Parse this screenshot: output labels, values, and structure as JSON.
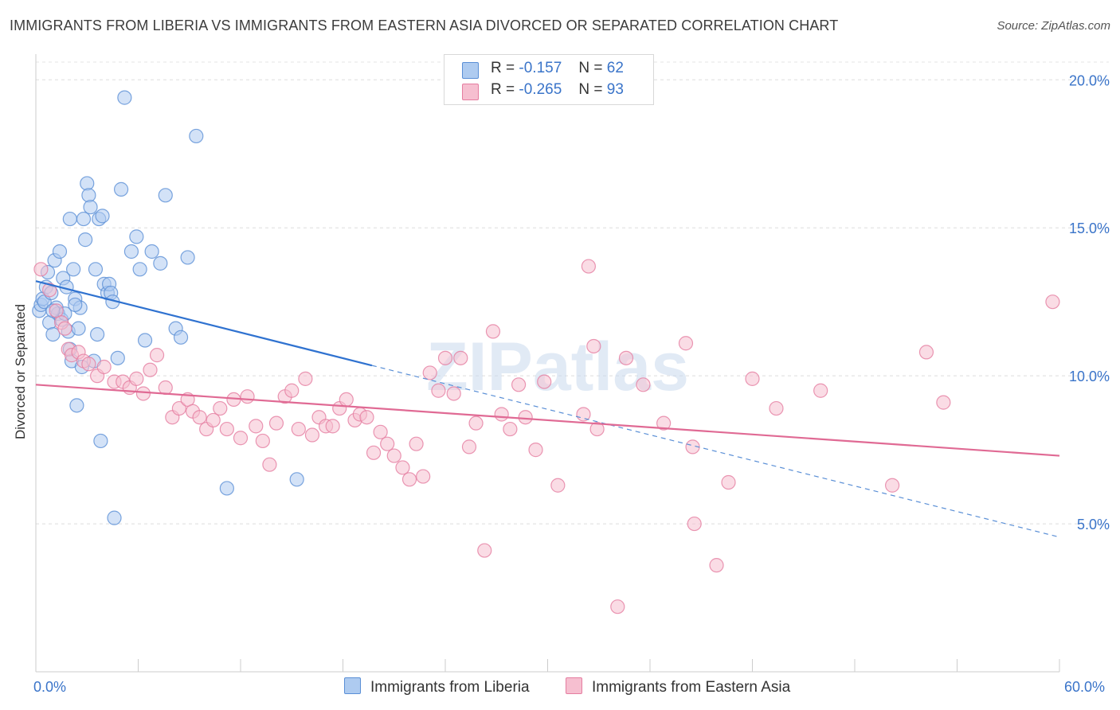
{
  "title": "IMMIGRANTS FROM LIBERIA VS IMMIGRANTS FROM EASTERN ASIA DIVORCED OR SEPARATED CORRELATION CHART",
  "source": "Source: ZipAtlas.com",
  "watermark": "ZIPatlas",
  "legend": {
    "r_label": "R =",
    "n_label": "N =",
    "series": [
      {
        "name": "Immigrants from Liberia",
        "r": "-0.157",
        "n": "62",
        "fill": "#aecbf0",
        "stroke": "#5a8fd6"
      },
      {
        "name": "Immigrants from Eastern Asia",
        "r": "-0.265",
        "n": "93",
        "fill": "#f6bfd0",
        "stroke": "#e57da0"
      }
    ]
  },
  "chart_data": {
    "type": "scatter",
    "title": "IMMIGRANTS FROM LIBERIA VS IMMIGRANTS FROM EASTERN ASIA DIVORCED OR SEPARATED CORRELATION CHART",
    "xlabel": "",
    "ylabel": "Divorced or Separated",
    "xlim": [
      0,
      60
    ],
    "ylim": [
      0,
      20.6
    ],
    "x_tick_labels": [
      "0.0%",
      "60.0%"
    ],
    "y_ticks": [
      5,
      10,
      15,
      20
    ],
    "y_tick_labels": [
      "5.0%",
      "10.0%",
      "15.0%",
      "20.0%"
    ],
    "series": [
      {
        "name": "Immigrants from Liberia",
        "color": "#5a8fd6",
        "fill": "#aecbf0",
        "trend": {
          "x0": 0,
          "y0": 13.2,
          "x1": 19.7,
          "y1": 10.35,
          "dash_to_x": 60,
          "dash_to_y": 4.55
        },
        "points": [
          [
            0.2,
            12.2
          ],
          [
            0.3,
            12.4
          ],
          [
            0.4,
            12.6
          ],
          [
            0.5,
            12.5
          ],
          [
            0.6,
            13.0
          ],
          [
            0.7,
            13.5
          ],
          [
            0.8,
            11.8
          ],
          [
            0.9,
            12.8
          ],
          [
            1.0,
            11.4
          ],
          [
            1.1,
            13.9
          ],
          [
            1.2,
            12.3
          ],
          [
            1.3,
            12.1
          ],
          [
            1.4,
            14.2
          ],
          [
            1.5,
            11.9
          ],
          [
            1.6,
            13.3
          ],
          [
            1.7,
            12.1
          ],
          [
            1.8,
            13.0
          ],
          [
            1.9,
            11.5
          ],
          [
            2.0,
            10.9
          ],
          [
            2.0,
            15.3
          ],
          [
            2.1,
            10.5
          ],
          [
            2.2,
            13.6
          ],
          [
            2.3,
            12.6
          ],
          [
            2.4,
            9.0
          ],
          [
            2.5,
            11.6
          ],
          [
            2.6,
            12.3
          ],
          [
            2.7,
            10.3
          ],
          [
            2.8,
            15.3
          ],
          [
            2.9,
            14.6
          ],
          [
            3.0,
            16.5
          ],
          [
            3.1,
            16.1
          ],
          [
            3.2,
            15.7
          ],
          [
            3.4,
            10.5
          ],
          [
            3.5,
            13.6
          ],
          [
            3.6,
            11.4
          ],
          [
            3.7,
            15.3
          ],
          [
            3.8,
            7.8
          ],
          [
            3.9,
            15.4
          ],
          [
            4.0,
            13.1
          ],
          [
            4.2,
            12.8
          ],
          [
            4.3,
            13.1
          ],
          [
            4.4,
            12.8
          ],
          [
            4.5,
            12.5
          ],
          [
            4.6,
            5.2
          ],
          [
            4.8,
            10.6
          ],
          [
            5.0,
            16.3
          ],
          [
            5.2,
            19.4
          ],
          [
            5.6,
            14.2
          ],
          [
            5.9,
            14.7
          ],
          [
            6.1,
            13.6
          ],
          [
            6.4,
            11.2
          ],
          [
            6.8,
            14.2
          ],
          [
            7.3,
            13.8
          ],
          [
            7.6,
            16.1
          ],
          [
            8.2,
            11.6
          ],
          [
            8.5,
            11.3
          ],
          [
            8.9,
            14.0
          ],
          [
            9.4,
            18.1
          ],
          [
            11.2,
            6.2
          ],
          [
            15.3,
            6.5
          ],
          [
            2.3,
            12.4
          ],
          [
            1.0,
            12.2
          ]
        ]
      },
      {
        "name": "Immigrants from Eastern Asia",
        "color": "#e57da0",
        "fill": "#f6bfd0",
        "trend": {
          "x0": 0,
          "y0": 9.7,
          "x1": 60,
          "y1": 7.3
        },
        "points": [
          [
            0.3,
            13.6
          ],
          [
            0.8,
            12.9
          ],
          [
            1.2,
            12.2
          ],
          [
            1.5,
            11.8
          ],
          [
            1.7,
            11.6
          ],
          [
            1.9,
            10.9
          ],
          [
            2.1,
            10.7
          ],
          [
            2.5,
            10.8
          ],
          [
            2.8,
            10.5
          ],
          [
            3.1,
            10.4
          ],
          [
            3.6,
            10.0
          ],
          [
            4.0,
            10.3
          ],
          [
            4.6,
            9.8
          ],
          [
            5.1,
            9.8
          ],
          [
            5.5,
            9.6
          ],
          [
            5.9,
            9.9
          ],
          [
            6.3,
            9.4
          ],
          [
            6.7,
            10.2
          ],
          [
            7.1,
            10.7
          ],
          [
            7.6,
            9.6
          ],
          [
            8.0,
            8.6
          ],
          [
            8.4,
            8.9
          ],
          [
            8.9,
            9.2
          ],
          [
            9.2,
            8.8
          ],
          [
            9.6,
            8.6
          ],
          [
            10.0,
            8.2
          ],
          [
            10.4,
            8.5
          ],
          [
            10.8,
            8.9
          ],
          [
            11.2,
            8.2
          ],
          [
            11.6,
            9.2
          ],
          [
            12.0,
            7.9
          ],
          [
            12.4,
            9.3
          ],
          [
            12.9,
            8.3
          ],
          [
            13.3,
            7.8
          ],
          [
            13.7,
            7.0
          ],
          [
            14.1,
            8.4
          ],
          [
            14.6,
            9.3
          ],
          [
            15.0,
            9.5
          ],
          [
            15.4,
            8.2
          ],
          [
            15.8,
            9.9
          ],
          [
            16.2,
            8.0
          ],
          [
            16.6,
            8.6
          ],
          [
            17.0,
            8.3
          ],
          [
            17.4,
            8.3
          ],
          [
            17.8,
            8.9
          ],
          [
            18.2,
            9.2
          ],
          [
            18.7,
            8.5
          ],
          [
            19.0,
            8.7
          ],
          [
            19.4,
            8.6
          ],
          [
            19.8,
            7.4
          ],
          [
            20.2,
            8.1
          ],
          [
            20.6,
            7.7
          ],
          [
            21.0,
            7.3
          ],
          [
            21.5,
            6.9
          ],
          [
            21.9,
            6.5
          ],
          [
            22.3,
            7.7
          ],
          [
            22.7,
            6.6
          ],
          [
            23.1,
            10.1
          ],
          [
            23.6,
            9.5
          ],
          [
            24.0,
            10.6
          ],
          [
            24.5,
            9.4
          ],
          [
            25.4,
            7.6
          ],
          [
            25.8,
            8.4
          ],
          [
            26.3,
            4.1
          ],
          [
            26.8,
            11.5
          ],
          [
            27.3,
            8.7
          ],
          [
            27.8,
            8.2
          ],
          [
            28.3,
            9.7
          ],
          [
            28.7,
            8.6
          ],
          [
            29.3,
            7.5
          ],
          [
            29.8,
            9.8
          ],
          [
            30.6,
            6.3
          ],
          [
            32.1,
            8.7
          ],
          [
            32.4,
            13.7
          ],
          [
            32.7,
            11.0
          ],
          [
            32.9,
            8.2
          ],
          [
            34.1,
            2.2
          ],
          [
            34.6,
            10.6
          ],
          [
            35.6,
            9.7
          ],
          [
            36.8,
            8.4
          ],
          [
            38.1,
            11.1
          ],
          [
            38.5,
            7.6
          ],
          [
            38.6,
            5.0
          ],
          [
            39.9,
            3.6
          ],
          [
            40.6,
            6.4
          ],
          [
            42.0,
            9.9
          ],
          [
            43.4,
            8.9
          ],
          [
            46.0,
            9.5
          ],
          [
            50.2,
            6.3
          ],
          [
            52.2,
            10.8
          ],
          [
            53.2,
            9.1
          ],
          [
            59.6,
            12.5
          ],
          [
            24.9,
            10.6
          ]
        ]
      }
    ]
  }
}
